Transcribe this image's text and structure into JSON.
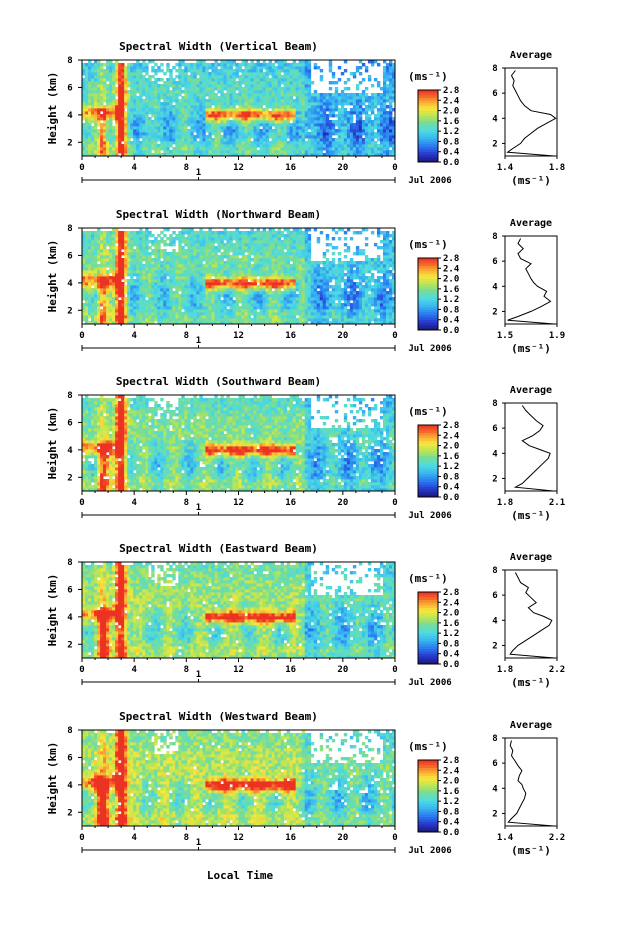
{
  "figure": {
    "x_label": "Local Time",
    "date_label": "Jul 2006",
    "day_label": "1",
    "colorbar_unit": "(ms⁻¹)",
    "colorbar_ticks": [
      "0.0",
      "0.4",
      "0.8",
      "1.2",
      "1.6",
      "2.0",
      "2.4",
      "2.8"
    ],
    "avg_title": "Average",
    "avg_unit": "(ms⁻¹)"
  },
  "chart_data": [
    {
      "type": "heatmap",
      "title": "Spectral Width (Vertical Beam)",
      "xlabel": "",
      "ylabel": "Height (km)",
      "xlim": [
        0,
        24
      ],
      "ylim": [
        1,
        8
      ],
      "x_ticks": [
        "0",
        "4",
        "8",
        "12",
        "16",
        "20",
        "0"
      ],
      "y_ticks": [
        "2",
        "4",
        "6",
        "8"
      ],
      "colorbar": {
        "min": 0.0,
        "max": 2.8,
        "ticks": [
          "0.0",
          "0.4",
          "0.8",
          "1.2",
          "1.6",
          "2.0",
          "2.4",
          "2.8"
        ]
      },
      "average_profile": {
        "xlabel": "(ms⁻¹)",
        "xlim": [
          1.4,
          1.8
        ],
        "x_ticks": [
          "1.4",
          "1.8"
        ],
        "y_ticks": [
          "2",
          "4",
          "6",
          "8"
        ],
        "ylim": [
          1,
          8
        ],
        "height": [
          1.0,
          1.3,
          1.6,
          2.0,
          2.4,
          2.8,
          3.2,
          3.6,
          4.0,
          4.3,
          4.6,
          5.0,
          5.4,
          5.8,
          6.2,
          6.6,
          7.0,
          7.4,
          7.8
        ],
        "value": [
          1.78,
          1.42,
          1.46,
          1.52,
          1.55,
          1.6,
          1.65,
          1.72,
          1.79,
          1.75,
          1.6,
          1.55,
          1.52,
          1.5,
          1.48,
          1.46,
          1.47,
          1.45,
          1.48
        ]
      }
    },
    {
      "type": "heatmap",
      "title": "Spectral Width (Northward Beam)",
      "xlabel": "",
      "ylabel": "Height (km)",
      "xlim": [
        0,
        24
      ],
      "ylim": [
        1,
        8
      ],
      "x_ticks": [
        "0",
        "4",
        "8",
        "12",
        "16",
        "20",
        "0"
      ],
      "y_ticks": [
        "2",
        "4",
        "6",
        "8"
      ],
      "colorbar": {
        "min": 0.0,
        "max": 2.8,
        "ticks": [
          "0.0",
          "0.4",
          "0.8",
          "1.2",
          "1.6",
          "2.0",
          "2.4",
          "2.8"
        ]
      },
      "average_profile": {
        "xlabel": "(ms⁻¹)",
        "xlim": [
          1.5,
          1.9
        ],
        "x_ticks": [
          "1.5",
          "1.9"
        ],
        "y_ticks": [
          "2",
          "4",
          "6",
          "8"
        ],
        "ylim": [
          1,
          8
        ],
        "height": [
          1.0,
          1.3,
          1.6,
          2.0,
          2.4,
          2.8,
          3.2,
          3.6,
          4.0,
          4.3,
          4.6,
          5.0,
          5.4,
          5.8,
          6.2,
          6.6,
          7.0,
          7.4,
          7.8
        ],
        "value": [
          1.88,
          1.52,
          1.6,
          1.7,
          1.78,
          1.85,
          1.8,
          1.82,
          1.75,
          1.72,
          1.7,
          1.68,
          1.66,
          1.7,
          1.62,
          1.6,
          1.64,
          1.6,
          1.62
        ]
      }
    },
    {
      "type": "heatmap",
      "title": "Spectral Width (Southward Beam)",
      "xlabel": "",
      "ylabel": "Height (km)",
      "xlim": [
        0,
        24
      ],
      "ylim": [
        1,
        8
      ],
      "x_ticks": [
        "0",
        "4",
        "8",
        "12",
        "16",
        "20",
        "0"
      ],
      "y_ticks": [
        "2",
        "4",
        "6",
        "8"
      ],
      "colorbar": {
        "min": 0.0,
        "max": 2.8,
        "ticks": [
          "0.0",
          "0.4",
          "0.8",
          "1.2",
          "1.6",
          "2.0",
          "2.4",
          "2.8"
        ]
      },
      "average_profile": {
        "xlabel": "(ms⁻¹)",
        "xlim": [
          1.8,
          2.1
        ],
        "x_ticks": [
          "1.8",
          "2.1"
        ],
        "y_ticks": [
          "2",
          "4",
          "6",
          "8"
        ],
        "ylim": [
          1,
          8
        ],
        "height": [
          1.0,
          1.3,
          1.6,
          2.0,
          2.4,
          2.8,
          3.2,
          3.6,
          4.0,
          4.3,
          4.6,
          5.0,
          5.4,
          5.8,
          6.2,
          6.6,
          7.0,
          7.4,
          7.8
        ],
        "value": [
          2.08,
          1.86,
          1.9,
          1.93,
          1.96,
          1.99,
          2.02,
          2.05,
          2.06,
          2.0,
          1.94,
          1.9,
          1.96,
          2.0,
          2.02,
          1.98,
          1.95,
          1.92,
          1.9
        ]
      }
    },
    {
      "type": "heatmap",
      "title": "Spectral Width (Eastward Beam)",
      "xlabel": "",
      "ylabel": "Height (km)",
      "xlim": [
        0,
        24
      ],
      "ylim": [
        1,
        8
      ],
      "x_ticks": [
        "0",
        "4",
        "8",
        "12",
        "16",
        "20",
        "0"
      ],
      "y_ticks": [
        "2",
        "4",
        "6",
        "8"
      ],
      "colorbar": {
        "min": 0.0,
        "max": 2.8,
        "ticks": [
          "0.0",
          "0.4",
          "0.8",
          "1.2",
          "1.6",
          "2.0",
          "2.4",
          "2.8"
        ]
      },
      "average_profile": {
        "xlabel": "(ms⁻¹)",
        "xlim": [
          1.8,
          2.2
        ],
        "x_ticks": [
          "1.8",
          "2.2"
        ],
        "y_ticks": [
          "2",
          "4",
          "6",
          "8"
        ],
        "ylim": [
          1,
          8
        ],
        "height": [
          1.0,
          1.3,
          1.6,
          2.0,
          2.4,
          2.8,
          3.2,
          3.6,
          4.0,
          4.3,
          4.6,
          5.0,
          5.4,
          5.8,
          6.2,
          6.6,
          7.0,
          7.4,
          7.8
        ],
        "value": [
          2.18,
          1.84,
          1.86,
          1.9,
          1.96,
          2.02,
          2.08,
          2.14,
          2.16,
          2.1,
          2.02,
          1.98,
          2.04,
          2.0,
          1.96,
          1.98,
          1.92,
          1.9,
          1.88
        ]
      }
    },
    {
      "type": "heatmap",
      "title": "Spectral Width (Westward Beam)",
      "xlabel": "Local Time",
      "ylabel": "Height (km)",
      "xlim": [
        0,
        24
      ],
      "ylim": [
        1,
        8
      ],
      "x_ticks": [
        "0",
        "4",
        "8",
        "12",
        "16",
        "20",
        "0"
      ],
      "y_ticks": [
        "2",
        "4",
        "6",
        "8"
      ],
      "colorbar": {
        "min": 0.0,
        "max": 2.8,
        "ticks": [
          "0.0",
          "0.4",
          "0.8",
          "1.2",
          "1.6",
          "2.0",
          "2.4",
          "2.8"
        ]
      },
      "average_profile": {
        "xlabel": "(ms⁻¹)",
        "xlim": [
          1.4,
          2.2
        ],
        "x_ticks": [
          "1.4",
          "2.2"
        ],
        "y_ticks": [
          "2",
          "4",
          "6",
          "8"
        ],
        "ylim": [
          1,
          8
        ],
        "height": [
          1.0,
          1.3,
          1.6,
          2.0,
          2.4,
          2.8,
          3.2,
          3.6,
          4.0,
          4.3,
          4.6,
          5.0,
          5.4,
          5.8,
          6.2,
          6.6,
          7.0,
          7.4,
          7.8
        ],
        "value": [
          2.15,
          1.45,
          1.5,
          1.58,
          1.62,
          1.66,
          1.7,
          1.72,
          1.68,
          1.66,
          1.6,
          1.62,
          1.66,
          1.6,
          1.55,
          1.5,
          1.52,
          1.48,
          1.5
        ]
      }
    }
  ]
}
